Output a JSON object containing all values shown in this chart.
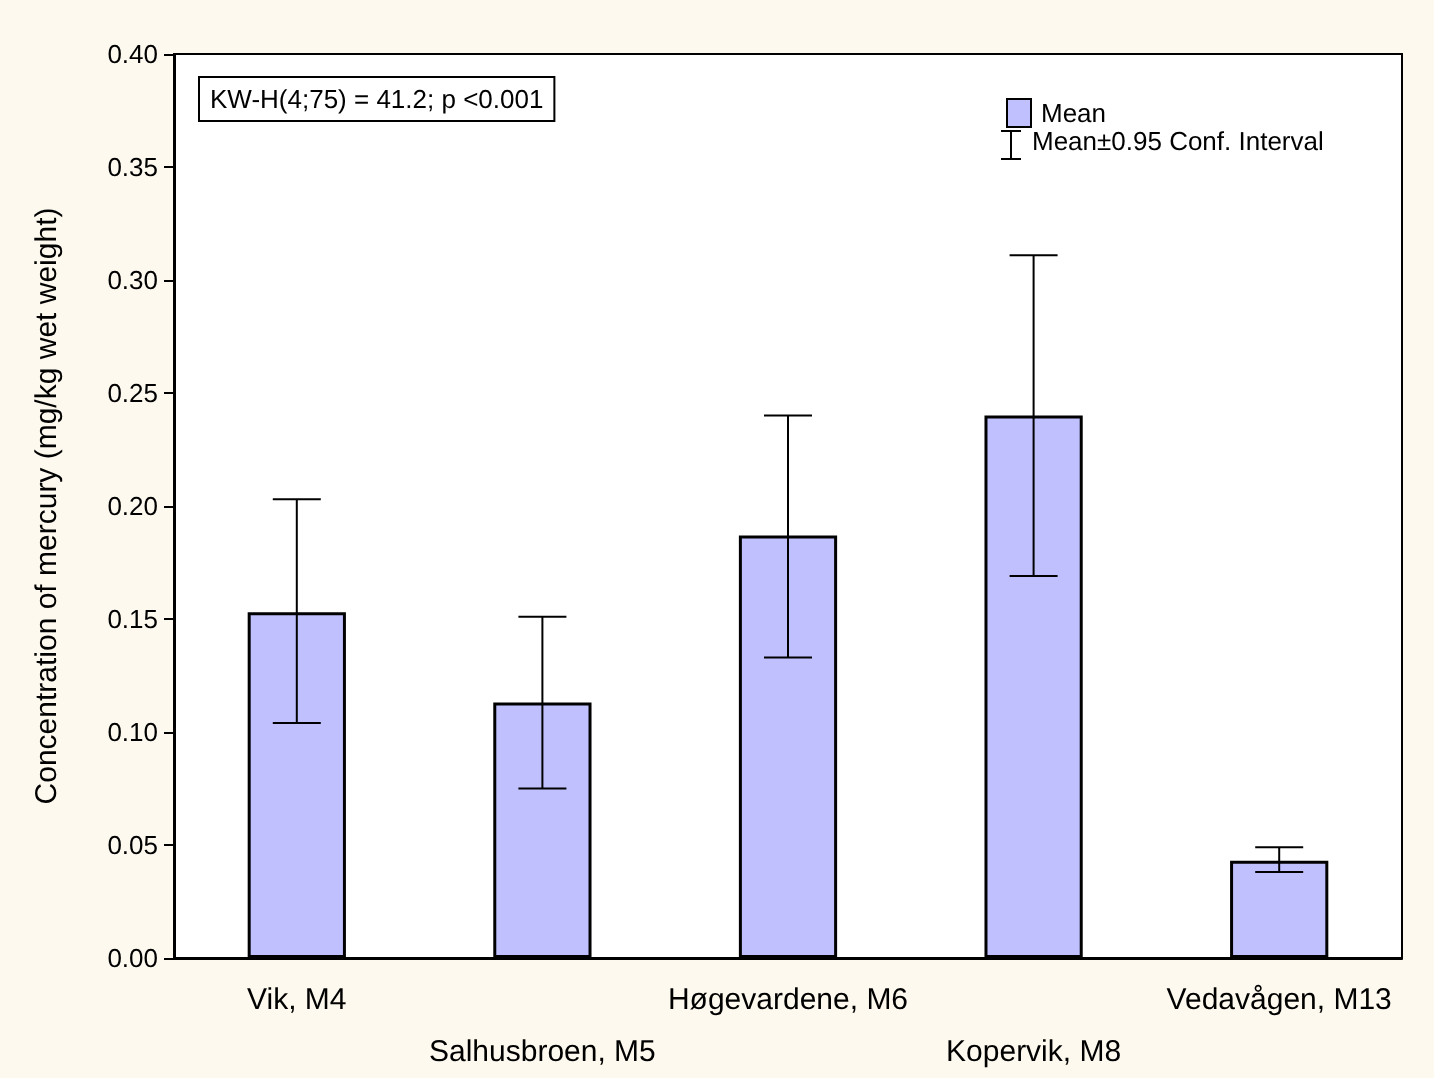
{
  "chart_data": {
    "type": "bar",
    "ylabel": "Concentration of mercury (mg/kg wet weight)",
    "categories": [
      "Vik, M4",
      "Salhusbroen, M5",
      "Høgevardene, M6",
      "Kopervik, M8",
      "Vedavågen, M13"
    ],
    "series": [
      {
        "name": "Mean",
        "color": "#c0c0ff",
        "values": [
          0.153,
          0.113,
          0.187,
          0.24,
          0.043
        ],
        "errors": [
          [
            0.104,
            0.203
          ],
          [
            0.075,
            0.151
          ],
          [
            0.133,
            0.24
          ],
          [
            0.169,
            0.311
          ],
          [
            0.038,
            0.049
          ]
        ]
      }
    ],
    "ylim": [
      0,
      0.4
    ],
    "yticks": [
      {
        "value": 0,
        "label": "0.00"
      },
      {
        "value": 0.05,
        "label": "0.05"
      },
      {
        "value": 0.1,
        "label": "0.10"
      },
      {
        "value": 0.15,
        "label": "0.15"
      },
      {
        "value": 0.2,
        "label": "0.20"
      },
      {
        "value": 0.25,
        "label": "0.25"
      },
      {
        "value": 0.3,
        "label": "0.30"
      },
      {
        "value": 0.35,
        "label": "0.35"
      },
      {
        "value": 0.4,
        "label": "0.40"
      }
    ],
    "grid": false,
    "legend": "top right",
    "annotations": [
      "KW-H(4;75) = 41.2; p <0.001",
      "Mean±0.95 Conf. Interval"
    ]
  }
}
